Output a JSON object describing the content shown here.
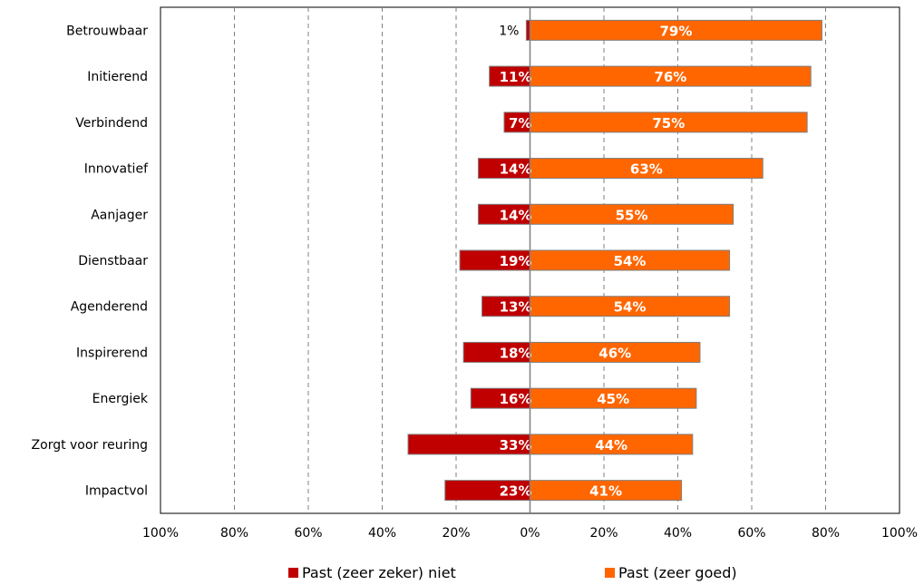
{
  "chart_data": {
    "type": "bar",
    "orientation": "horizontal-diverging",
    "categories": [
      "Betrouwbaar",
      "Initierend",
      "Verbindend",
      "Innovatief",
      "Aanjager",
      "Dienstbaar",
      "Agenderend",
      "Inspirerend",
      "Energiek",
      "Zorgt voor reuring",
      "Impactvol"
    ],
    "series": [
      {
        "name": "Past (zeer zeker) niet",
        "color": "#c00000",
        "direction": "left",
        "values": [
          1,
          11,
          7,
          14,
          14,
          19,
          13,
          18,
          16,
          33,
          23
        ],
        "labels": [
          "1%",
          "11%",
          "7%",
          "14%",
          "14%",
          "19%",
          "13%",
          "18%",
          "16%",
          "33%",
          "23%"
        ]
      },
      {
        "name": "Past (zeer goed)",
        "color": "#ff6600",
        "direction": "right",
        "values": [
          79,
          76,
          75,
          63,
          55,
          54,
          54,
          46,
          45,
          44,
          41
        ],
        "labels": [
          "79%",
          "76%",
          "75%",
          "63%",
          "55%",
          "54%",
          "54%",
          "46%",
          "45%",
          "44%",
          "41%"
        ]
      }
    ],
    "x_ticks": [
      "100%",
      "80%",
      "60%",
      "40%",
      "20%",
      "0%",
      "20%",
      "40%",
      "60%",
      "80%",
      "100%"
    ],
    "xlim": [
      -100,
      100
    ],
    "grid": "vertical dashed",
    "legend": "bottom",
    "title": "",
    "xlabel": "",
    "ylabel": ""
  },
  "legend": {
    "neg_label": "Past (zeer zeker) niet",
    "pos_label": "Past (zeer goed)"
  }
}
